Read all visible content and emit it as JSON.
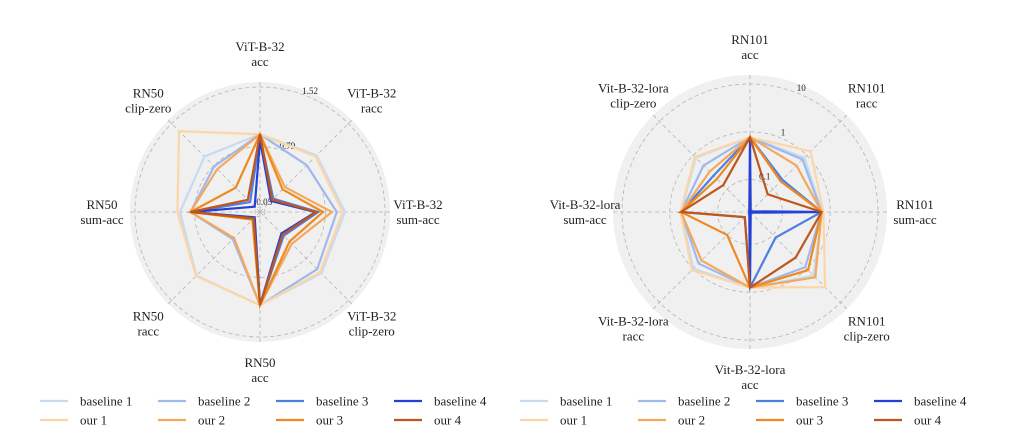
{
  "chart_data": [
    {
      "type": "radar",
      "scale": "linear",
      "axes": [
        "ViT-B-32\nacc",
        "ViT-B-32\nracc",
        "ViT-B-32\nsum-acc",
        "ViT-B-32\nclip-zero",
        "RN50\nacc",
        "RN50\nracc",
        "RN50\nsum-acc",
        "RN50\nclip-zero"
      ],
      "ticks": [
        0.05,
        0.79,
        1.52
      ],
      "rlim": [
        0.05,
        1.52
      ],
      "grid": true,
      "legend": "bottom",
      "series": [
        {
          "name": "baseline 1",
          "color": "#c6dbef",
          "values": [
            0.94,
            0.97,
            1.03,
            1.05,
            1.13,
            1.09,
            0.97,
            0.95
          ]
        },
        {
          "name": "baseline 2",
          "color": "#9fb8ee",
          "values": [
            0.94,
            0.8,
            0.93,
            0.98,
            1.13,
            0.46,
            0.84,
            0.78
          ]
        },
        {
          "name": "baseline 3",
          "color": "#4f7fe0",
          "values": [
            0.92,
            0.22,
            0.7,
            0.4,
            1.13,
            0.1,
            0.84,
            0.16
          ]
        },
        {
          "name": "baseline 4",
          "color": "#2440d6",
          "values": [
            0.87,
            0.18,
            0.67,
            0.36,
            1.13,
            0.08,
            0.84,
            0.08
          ]
        },
        {
          "name": "our 1",
          "color": "#fdd6a6",
          "values": [
            0.94,
            0.95,
            1.0,
            1.03,
            1.13,
            1.1,
            1.0,
            1.39
          ]
        },
        {
          "name": "our 2",
          "color": "#f4a85c",
          "values": [
            0.94,
            0.42,
            0.87,
            0.54,
            1.13,
            0.44,
            0.84,
            0.73
          ]
        },
        {
          "name": "our 3",
          "color": "#ee8a22",
          "values": [
            0.94,
            0.38,
            0.76,
            0.5,
            1.13,
            0.12,
            0.84,
            0.41
          ]
        },
        {
          "name": "our 4",
          "color": "#bf561b",
          "values": [
            0.94,
            0.2,
            0.68,
            0.38,
            1.13,
            0.1,
            0.84,
            0.2
          ]
        }
      ]
    },
    {
      "type": "radar",
      "scale": "log",
      "axes": [
        "RN101\nacc",
        "RN101\nracc",
        "RN101\nsum-acc",
        "RN101\nclip-zero",
        "Vit-B-32-lora\nacc",
        "Vit-B-32-lora\nracc",
        "Vit-B-32-lora\nsum-acc",
        "Vit-B-32-lora\nclip-zero"
      ],
      "ticks": [
        0.1,
        1,
        10
      ],
      "rlim": [
        0.021,
        14
      ],
      "grid": true,
      "legend": "bottom",
      "series": [
        {
          "name": "baseline 1",
          "color": "#c6dbef",
          "values": [
            0.77,
            0.85,
            0.68,
            1.6,
            0.8,
            1.0,
            0.58,
            0.85
          ]
        },
        {
          "name": "baseline 2",
          "color": "#9fb8ee",
          "values": [
            0.77,
            0.75,
            0.66,
            0.9,
            0.8,
            0.7,
            0.58,
            0.5
          ]
        },
        {
          "name": "baseline 3",
          "color": "#4f7fe0",
          "values": [
            0.77,
            0.19,
            0.66,
            0.12,
            0.8,
            0.03,
            0.58,
            0.25
          ]
        },
        {
          "name": "baseline 4",
          "color": "#2440d6",
          "values": [
            0.77,
            0.022,
            0.66,
            0.022,
            0.8,
            0.022,
            0.022,
            0.022
          ]
        },
        {
          "name": "our 1",
          "color": "#fdd6a6",
          "values": [
            0.77,
            1.3,
            0.72,
            3.5,
            0.8,
            1.1,
            0.6,
            0.9
          ]
        },
        {
          "name": "our 2",
          "color": "#f4a85c",
          "values": [
            0.77,
            0.5,
            0.66,
            1.8,
            0.8,
            0.57,
            0.58,
            0.33
          ]
        },
        {
          "name": "our 3",
          "color": "#ee8a22",
          "values": [
            0.77,
            0.17,
            0.66,
            1.1,
            0.8,
            0.1,
            0.58,
            0.2
          ]
        },
        {
          "name": "our 4",
          "color": "#bf561b",
          "values": [
            0.77,
            0.07,
            0.66,
            0.47,
            0.8,
            0.03,
            0.58,
            0.13
          ]
        }
      ]
    }
  ]
}
